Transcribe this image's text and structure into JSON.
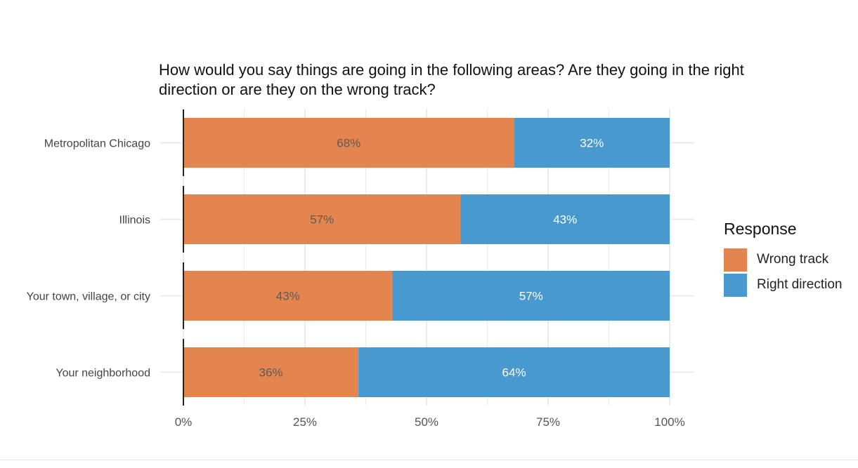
{
  "chart_data": {
    "type": "bar",
    "orientation": "horizontal",
    "stacked": true,
    "title": "How would you say things are going in the following areas? Are they going in the right direction or are they on the wrong track?",
    "categories": [
      "Metropolitan Chicago",
      "Illinois",
      "Your town, village, or city",
      "Your neighborhood"
    ],
    "series": [
      {
        "name": "Wrong track",
        "color": "#E4844F",
        "values": [
          68,
          57,
          43,
          36
        ],
        "labels": [
          "68%",
          "57%",
          "43%",
          "36%"
        ],
        "label_color": "#5a5a5a"
      },
      {
        "name": "Right direction",
        "color": "#4799CE",
        "values": [
          32,
          43,
          57,
          64
        ],
        "labels": [
          "32%",
          "43%",
          "57%",
          "64%"
        ],
        "label_color": "#ffffff"
      }
    ],
    "xlabel": "",
    "ylabel": "",
    "xlim": [
      0,
      100
    ],
    "xticks": [
      0,
      25,
      50,
      75,
      100
    ],
    "xtick_labels": [
      "0%",
      "25%",
      "50%",
      "75%",
      "100%"
    ],
    "grid": true,
    "legend": {
      "title": "Response",
      "position": "right"
    }
  }
}
